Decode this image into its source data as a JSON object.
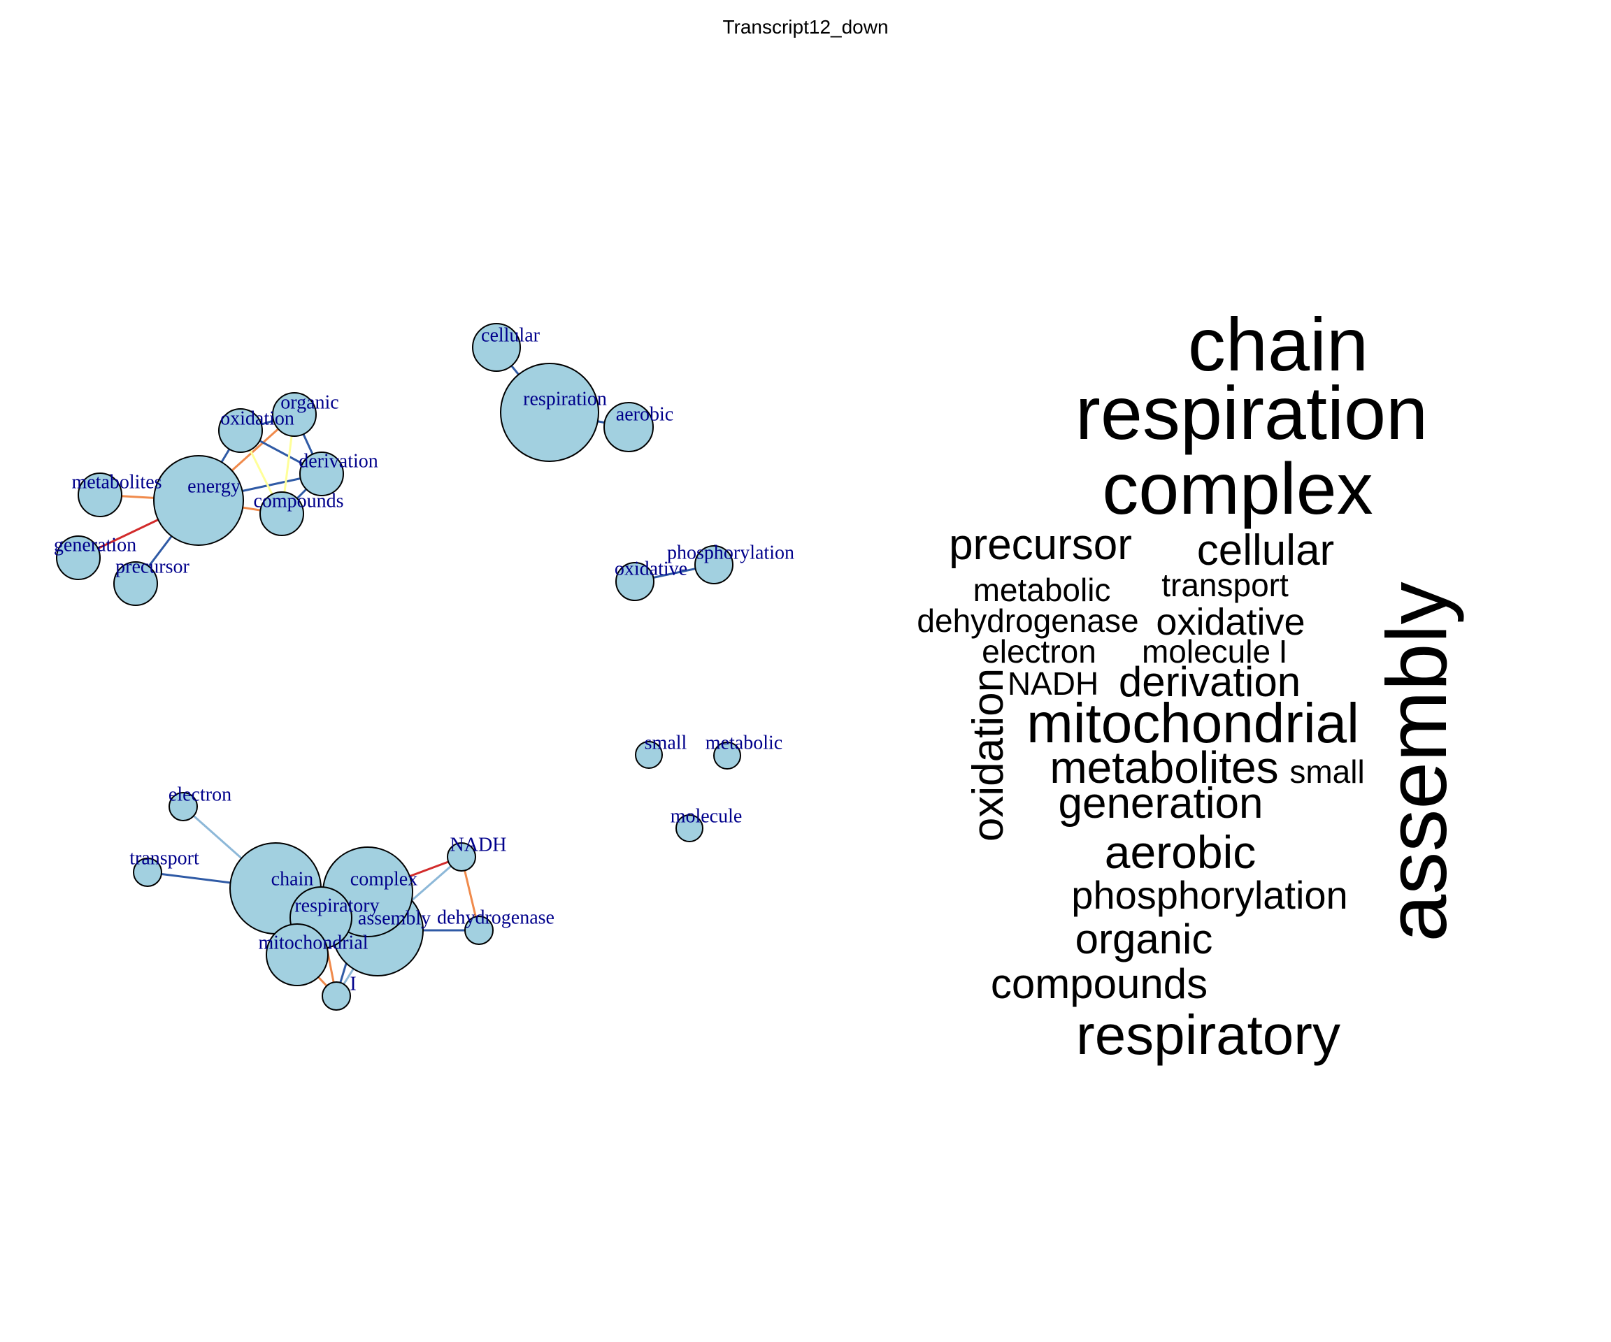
{
  "title": "Transcript12_down",
  "colors": {
    "node_fill": "#a2d0e0",
    "node_stroke": "#000000",
    "label": "#00008b",
    "edge_dark_blue": "#2f5aa5",
    "edge_light_blue": "#8db8d8",
    "edge_orange": "#f08a4b",
    "edge_red": "#d22b2b",
    "edge_yellow": "#ffff99"
  },
  "network": {
    "nodes": [
      {
        "id": "cellular",
        "label": "cellular"
      },
      {
        "id": "respiration",
        "label": "respiration"
      },
      {
        "id": "aerobic",
        "label": "aerobic"
      },
      {
        "id": "organic",
        "label": "organic"
      },
      {
        "id": "oxidation",
        "label": "oxidation"
      },
      {
        "id": "derivation",
        "label": "derivation"
      },
      {
        "id": "metabolites",
        "label": "metabolites"
      },
      {
        "id": "energy",
        "label": "energy"
      },
      {
        "id": "compounds",
        "label": "compounds"
      },
      {
        "id": "generation",
        "label": "generation"
      },
      {
        "id": "precursor",
        "label": "precursor"
      },
      {
        "id": "phosphorylation",
        "label": "phosphorylation"
      },
      {
        "id": "oxidative",
        "label": "oxidative"
      },
      {
        "id": "small",
        "label": "small"
      },
      {
        "id": "metabolic",
        "label": "metabolic"
      },
      {
        "id": "molecule",
        "label": "molecule"
      },
      {
        "id": "electron",
        "label": "electron"
      },
      {
        "id": "transport",
        "label": "transport"
      },
      {
        "id": "NADH",
        "label": "NADH"
      },
      {
        "id": "chain",
        "label": "chain"
      },
      {
        "id": "complex",
        "label": "complex"
      },
      {
        "id": "respiratory",
        "label": "respiratory"
      },
      {
        "id": "assembly",
        "label": "assembly"
      },
      {
        "id": "dehydrogenase",
        "label": "dehydrogenase"
      },
      {
        "id": "mitochondrial",
        "label": "mitochondrial"
      },
      {
        "id": "I",
        "label": "I"
      }
    ],
    "edges": [
      {
        "source": "cellular",
        "target": "respiration",
        "color": "edge_dark_blue"
      },
      {
        "source": "respiration",
        "target": "aerobic",
        "color": "edge_dark_blue"
      },
      {
        "source": "energy",
        "target": "oxidation",
        "color": "edge_dark_blue"
      },
      {
        "source": "energy",
        "target": "organic",
        "color": "edge_orange"
      },
      {
        "source": "energy",
        "target": "derivation",
        "color": "edge_dark_blue"
      },
      {
        "source": "energy",
        "target": "compounds",
        "color": "edge_orange"
      },
      {
        "source": "energy",
        "target": "metabolites",
        "color": "edge_orange"
      },
      {
        "source": "energy",
        "target": "generation",
        "color": "edge_red"
      },
      {
        "source": "energy",
        "target": "precursor",
        "color": "edge_dark_blue"
      },
      {
        "source": "oxidation",
        "target": "organic",
        "color": "edge_dark_blue"
      },
      {
        "source": "oxidation",
        "target": "derivation",
        "color": "edge_dark_blue"
      },
      {
        "source": "oxidation",
        "target": "compounds",
        "color": "edge_yellow"
      },
      {
        "source": "organic",
        "target": "derivation",
        "color": "edge_dark_blue"
      },
      {
        "source": "organic",
        "target": "compounds",
        "color": "edge_yellow"
      },
      {
        "source": "derivation",
        "target": "compounds",
        "color": "edge_dark_blue"
      },
      {
        "source": "oxidative",
        "target": "phosphorylation",
        "color": "edge_dark_blue"
      },
      {
        "source": "electron",
        "target": "chain",
        "color": "edge_light_blue"
      },
      {
        "source": "transport",
        "target": "chain",
        "color": "edge_dark_blue"
      },
      {
        "source": "chain",
        "target": "complex",
        "color": "edge_dark_blue"
      },
      {
        "source": "chain",
        "target": "respiratory",
        "color": "edge_dark_blue"
      },
      {
        "source": "chain",
        "target": "mitochondrial",
        "color": "edge_dark_blue"
      },
      {
        "source": "complex",
        "target": "NADH",
        "color": "edge_red"
      },
      {
        "source": "complex",
        "target": "assembly",
        "color": "edge_dark_blue"
      },
      {
        "source": "complex",
        "target": "respiratory",
        "color": "edge_dark_blue"
      },
      {
        "source": "complex",
        "target": "mitochondrial",
        "color": "edge_dark_blue"
      },
      {
        "source": "NADH",
        "target": "dehydrogenase",
        "color": "edge_orange"
      },
      {
        "source": "NADH",
        "target": "assembly",
        "color": "edge_light_blue"
      },
      {
        "source": "assembly",
        "target": "dehydrogenase",
        "color": "edge_dark_blue"
      },
      {
        "source": "respiratory",
        "target": "mitochondrial",
        "color": "edge_dark_blue"
      },
      {
        "source": "respiratory",
        "target": "I",
        "color": "edge_orange"
      },
      {
        "source": "mitochondrial",
        "target": "I",
        "color": "edge_orange"
      },
      {
        "source": "assembly",
        "target": "I",
        "color": "edge_light_blue"
      },
      {
        "source": "complex",
        "target": "I",
        "color": "edge_dark_blue"
      }
    ]
  },
  "wordcloud": {
    "words": [
      {
        "text": "chain"
      },
      {
        "text": "respiration"
      },
      {
        "text": "complex"
      },
      {
        "text": "precursor"
      },
      {
        "text": "cellular"
      },
      {
        "text": "metabolic"
      },
      {
        "text": "transport"
      },
      {
        "text": "dehydrogenase"
      },
      {
        "text": "oxidative"
      },
      {
        "text": "electron"
      },
      {
        "text": "molecule"
      },
      {
        "text": "I"
      },
      {
        "text": "NADH"
      },
      {
        "text": "derivation"
      },
      {
        "text": "oxidation"
      },
      {
        "text": "mitochondrial"
      },
      {
        "text": "metabolites"
      },
      {
        "text": "small"
      },
      {
        "text": "generation"
      },
      {
        "text": "aerobic"
      },
      {
        "text": "phosphorylation"
      },
      {
        "text": "organic"
      },
      {
        "text": "compounds"
      },
      {
        "text": "respiratory"
      },
      {
        "text": "assembly"
      }
    ]
  }
}
